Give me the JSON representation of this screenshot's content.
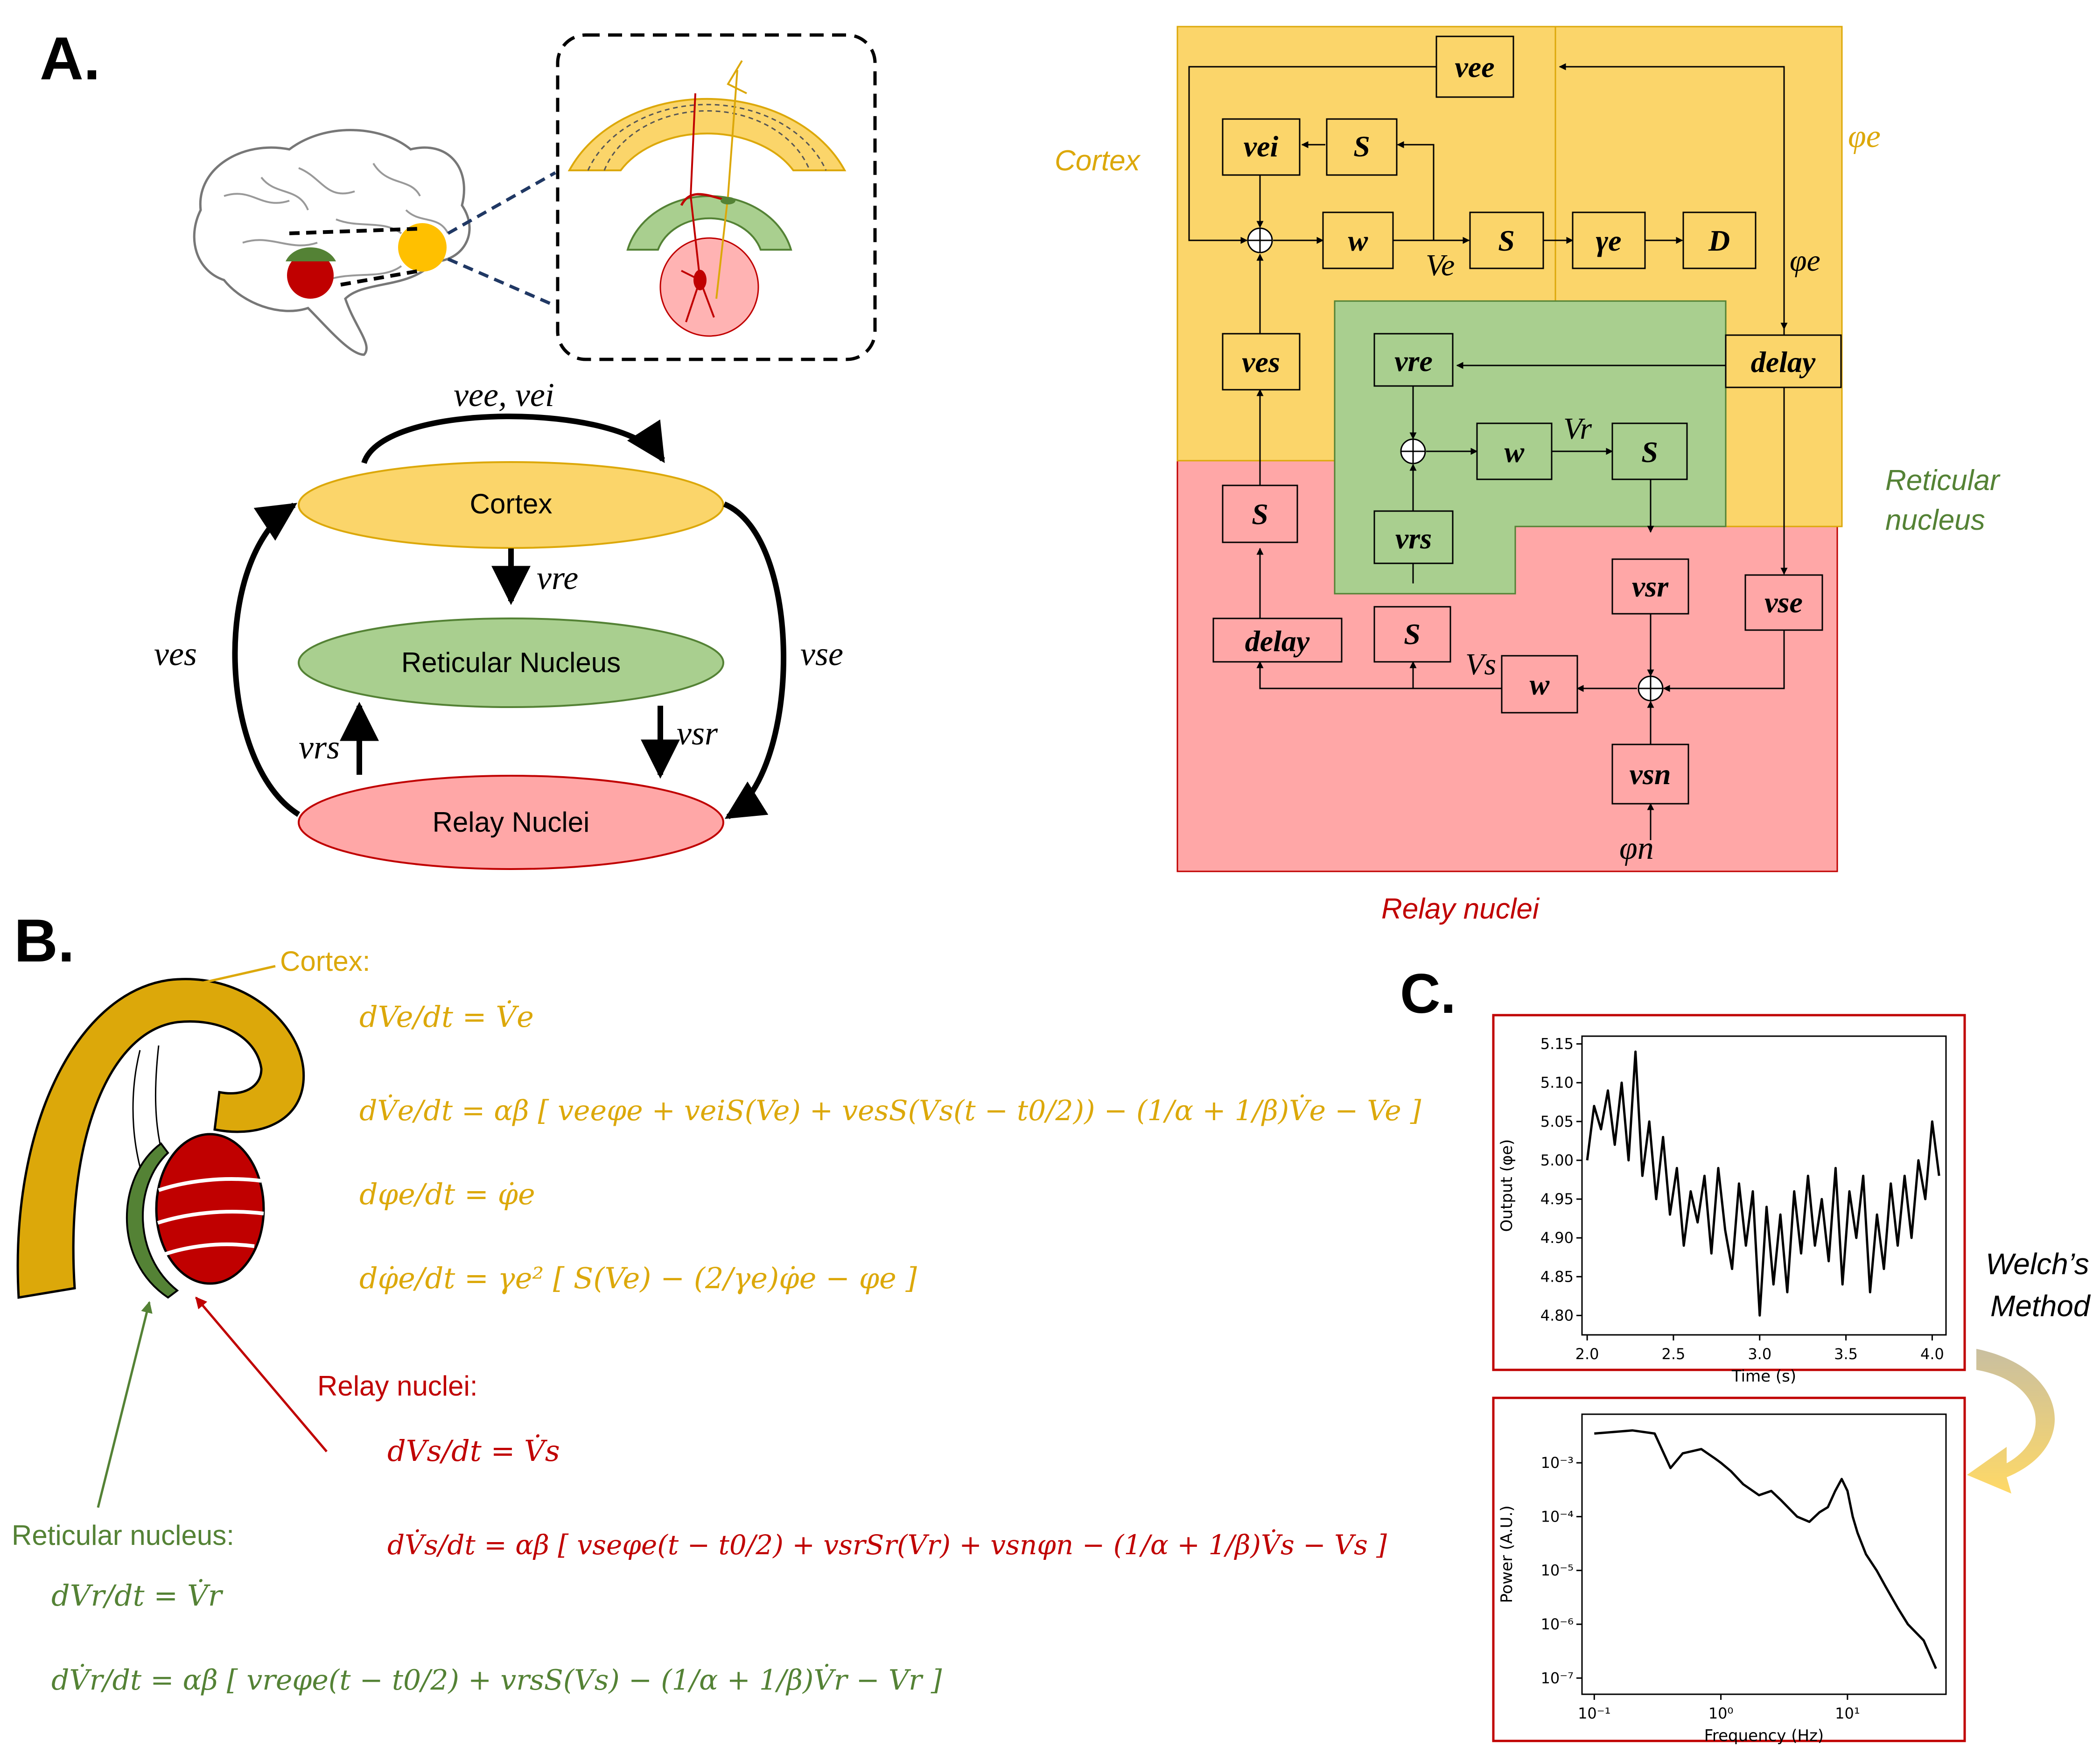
{
  "panels": {
    "a": "A.",
    "b": "B.",
    "c": "C."
  },
  "colors": {
    "cortex": "#f5c338",
    "cortex_fill": "#fbd56a",
    "reticular": "#a9cf8f",
    "reticular_text": "#548235",
    "relay": "#ffa7a7",
    "relay_text": "#c00000",
    "cortex_text": "#dca80a"
  },
  "schematic": {
    "cortex": "Cortex",
    "reticular": "Reticular Nucleus",
    "relay": "Relay Nuclei",
    "edge_top": "νee, νei",
    "edge_re": "νre",
    "edge_es": "νes",
    "edge_se": "νse",
    "edge_rs": "νrs",
    "edge_sr": "νsr"
  },
  "block": {
    "region_cortex": "Cortex",
    "region_reticular_1": "Reticular",
    "region_reticular_2": "nucleus",
    "region_relay": "Relay nuclei",
    "phi_e_top": "φe",
    "phi_e": "φe",
    "phi_n": "φn",
    "V_e": "Ve",
    "V_r": "Vr",
    "V_s": "Vs",
    "boxes": {
      "vee": "vee",
      "vei": "vei",
      "S1": "S",
      "w1": "w",
      "S2": "S",
      "gamma": "γe",
      "D": "D",
      "ves": "ves",
      "delay1": "delay",
      "vre": "vre",
      "w2": "w",
      "S3": "S",
      "vrs": "vrs",
      "S4": "S",
      "delay2": "delay",
      "S5": "S",
      "vsr": "vsr",
      "vse": "vse",
      "w3": "w",
      "vsn": "vsn"
    }
  },
  "equations": {
    "cortex_label": "Cortex:",
    "relay_label": "Relay nuclei:",
    "reticular_label": "Reticular nucleus:",
    "ce1": "dVe/dt = V̇e",
    "ce2": "dV̇e/dt = αβ [ veeφe + veiS(Ve) + vesS(Vs(t − t0/2)) − (1/α + 1/β)V̇e − Ve ]",
    "ce3": "dφe/dt = φ̇e",
    "ce4": "dφ̇e/dt = γe² [ S(Ve) − (2/γe)φ̇e − φe ]",
    "re1": "dVs/dt = V̇s",
    "re2": "dV̇s/dt = αβ [ vseφe(t − t0/2) + vsrSr(Vr) + vsnφn − (1/α + 1/β)V̇s − Vs ]",
    "ne1": "dVr/dt = V̇r",
    "ne2": "dV̇r/dt = αβ [ vreφe(t − t0/2) + vrsS(Vs) − (1/α + 1/β)V̇r − Vr ]"
  },
  "welch": {
    "line1": "Welch’s",
    "line2": "Method"
  },
  "chart_data": [
    {
      "type": "line",
      "xlabel": "Time (s)",
      "ylabel": "Output (φe)",
      "xlim": [
        1.97,
        4.08
      ],
      "ylim": [
        4.775,
        5.16
      ],
      "xticks": [
        2.0,
        2.5,
        3.0,
        3.5,
        4.0
      ],
      "xtick_labels": [
        "2.0",
        "2.5",
        "3.0",
        "3.5",
        "4.0"
      ],
      "yticks": [
        4.8,
        4.85,
        4.9,
        4.95,
        5.0,
        5.05,
        5.1,
        5.15
      ],
      "ytick_labels": [
        "4.80",
        "4.85",
        "4.90",
        "4.95",
        "5.00",
        "5.05",
        "5.10",
        "5.15"
      ],
      "x": [
        2.0,
        2.04,
        2.08,
        2.12,
        2.16,
        2.2,
        2.24,
        2.28,
        2.32,
        2.36,
        2.4,
        2.44,
        2.48,
        2.52,
        2.56,
        2.6,
        2.64,
        2.68,
        2.72,
        2.76,
        2.8,
        2.84,
        2.88,
        2.92,
        2.96,
        3.0,
        3.04,
        3.08,
        3.12,
        3.16,
        3.2,
        3.24,
        3.28,
        3.32,
        3.36,
        3.4,
        3.44,
        3.48,
        3.52,
        3.56,
        3.6,
        3.64,
        3.68,
        3.72,
        3.76,
        3.8,
        3.84,
        3.88,
        3.92,
        3.96,
        4.0,
        4.04
      ],
      "y": [
        5.0,
        5.07,
        5.04,
        5.09,
        5.02,
        5.1,
        5.0,
        5.14,
        4.98,
        5.05,
        4.95,
        5.03,
        4.93,
        4.99,
        4.89,
        4.96,
        4.92,
        4.98,
        4.88,
        4.99,
        4.91,
        4.86,
        4.97,
        4.89,
        4.96,
        4.8,
        4.94,
        4.84,
        4.93,
        4.83,
        4.96,
        4.88,
        4.98,
        4.89,
        4.95,
        4.87,
        4.99,
        4.84,
        4.96,
        4.9,
        4.98,
        4.83,
        4.93,
        4.86,
        4.97,
        4.89,
        4.98,
        4.9,
        5.0,
        4.95,
        5.05,
        4.98
      ]
    },
    {
      "type": "line",
      "xlabel": "Frequency (Hz)",
      "ylabel": "Power (A.U.)",
      "xscale": "log",
      "yscale": "log",
      "xlim": [
        0.08,
        60
      ],
      "ylim": [
        5e-08,
        0.008
      ],
      "xticks": [
        0.1,
        1,
        10
      ],
      "xtick_labels": [
        "10⁻¹",
        "10⁰",
        "10¹"
      ],
      "yticks": [
        1e-07,
        1e-06,
        1e-05,
        0.0001,
        0.001
      ],
      "ytick_labels": [
        "10⁻⁷",
        "10⁻⁶",
        "10⁻⁵",
        "10⁻⁴",
        "10⁻³"
      ],
      "x": [
        0.1,
        0.2,
        0.3,
        0.4,
        0.5,
        0.7,
        0.9,
        1.0,
        1.2,
        1.5,
        2.0,
        2.5,
        3.0,
        4.0,
        5.0,
        6.0,
        7.0,
        8.0,
        9.0,
        10.0,
        11.0,
        12.0,
        14.0,
        17.0,
        20.0,
        25.0,
        30.0,
        40.0,
        50.0
      ],
      "y": [
        0.0035,
        0.004,
        0.0035,
        0.0008,
        0.0015,
        0.0018,
        0.0012,
        0.001,
        0.0007,
        0.0004,
        0.00025,
        0.0003,
        0.0002,
        0.0001,
        8e-05,
        0.00012,
        0.00015,
        0.0003,
        0.0005,
        0.0003,
        0.0001,
        5e-05,
        2e-05,
        1e-05,
        5e-06,
        2e-06,
        1e-06,
        5e-07,
        1.5e-07
      ]
    }
  ]
}
